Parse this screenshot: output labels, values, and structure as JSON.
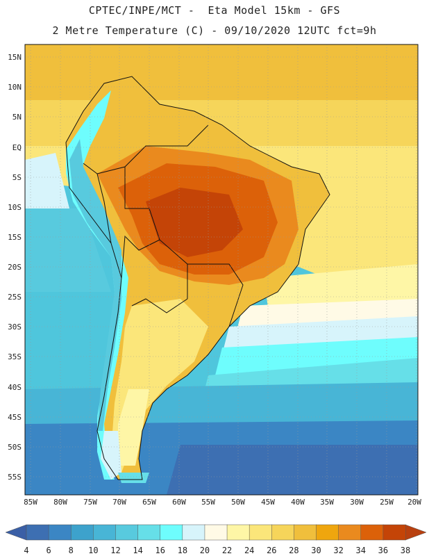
{
  "header": {
    "line1": "CPTEC/INPE/MCT -  Eta Model 15km - GFS",
    "line2": "2 Metre Temperature (C) - 09/10/2020 12UTC fct=9h"
  },
  "map": {
    "lat_labels": [
      "15N",
      "10N",
      "5N",
      "EQ",
      "5S",
      "10S",
      "15S",
      "20S",
      "25S",
      "30S",
      "35S",
      "40S",
      "45S",
      "50S",
      "55S"
    ],
    "lon_labels": [
      "85W",
      "80W",
      "75W",
      "70W",
      "65W",
      "60W",
      "55W",
      "50W",
      "45W",
      "40W",
      "35W",
      "30W",
      "25W",
      "20W"
    ]
  },
  "colorbar": {
    "levels": [
      "4",
      "6",
      "8",
      "10",
      "12",
      "14",
      "16",
      "18",
      "20",
      "22",
      "24",
      "26",
      "28",
      "30",
      "32",
      "34",
      "36",
      "38"
    ],
    "colors": [
      "#3d6fb2",
      "#3b86c4",
      "#3da2cc",
      "#48b5d6",
      "#58cade",
      "#66dfe8",
      "#6efdfd",
      "#d7f4fb",
      "#fffae6",
      "#fef6a6",
      "#fbe67a",
      "#f6d55a",
      "#f0bf3c",
      "#efa60e",
      "#ea8a1e",
      "#dc6109",
      "#c44407"
    ],
    "below_color": "#3a5fa6",
    "above_color": "#b8400f"
  }
}
